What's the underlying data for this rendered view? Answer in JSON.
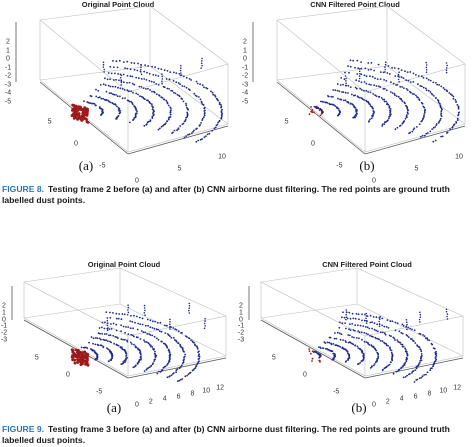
{
  "figures": [
    {
      "label": "FIGURE 8.",
      "caption": "Testing frame 2 before (a) and after (b) CNN airborne dust filtering. The red points are ground truth labelled dust points.",
      "panels": [
        {
          "title": "Original Point Cloud",
          "sublabel": "(a)",
          "z_ticks": [
            "2",
            "1",
            "0",
            "-1",
            "-2",
            "-3",
            "-4",
            "-5"
          ],
          "x_ticks": [
            "5",
            "0",
            "-5"
          ],
          "y_ticks": [
            "0",
            "5",
            "10"
          ]
        },
        {
          "title": "CNN Filtered Point Cloud",
          "sublabel": "(b)",
          "z_ticks": [
            "2",
            "1",
            "0",
            "-1",
            "-2",
            "-3",
            "-4",
            "-5"
          ],
          "x_ticks": [
            "5",
            "0",
            "-5"
          ],
          "y_ticks": [
            "0",
            "5",
            "10"
          ]
        }
      ]
    },
    {
      "label": "FIGURE 9.",
      "caption": "Testing frame 3 before (a) and after (b) CNN airborne dust filtering. The red points are ground truth labelled dust points.",
      "panels": [
        {
          "title": "Original Point Cloud",
          "sublabel": "(a)",
          "z_ticks": [
            "2",
            "1",
            "0",
            "-1",
            "-2",
            "-3"
          ],
          "x_ticks": [
            "5",
            "0",
            "-5"
          ],
          "y_ticks": [
            "0",
            "2",
            "4",
            "6",
            "8",
            "10",
            "12"
          ]
        },
        {
          "title": "CNN Filtered Point Cloud",
          "sublabel": "(b)",
          "z_ticks": [
            "2",
            "1",
            "0",
            "-1",
            "-2",
            "-3"
          ],
          "x_ticks": [
            "5",
            "0",
            "-5"
          ],
          "y_ticks": [
            "0",
            "2",
            "4",
            "6",
            "8",
            "10",
            "12"
          ]
        }
      ]
    }
  ],
  "colors": {
    "scan_points": "#1c2a8c",
    "dust_points": "#a01818",
    "caption_label": "#1f79b8"
  }
}
